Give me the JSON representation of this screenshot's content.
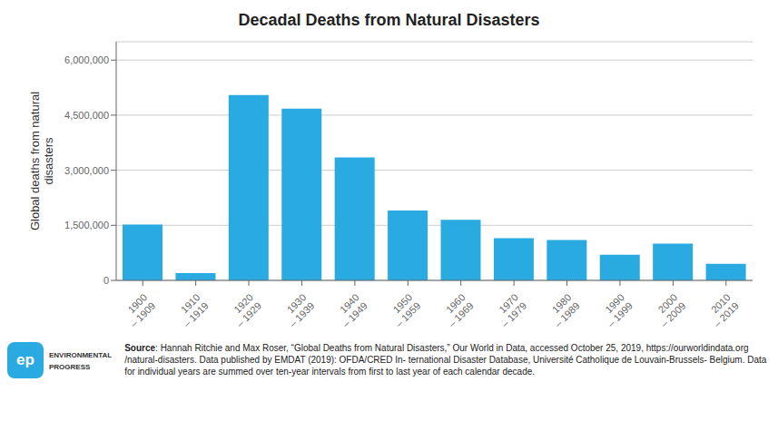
{
  "chart_data": {
    "type": "bar",
    "title": "Decadal Deaths from Natural Disasters",
    "ylabel": "Global deaths from natural\ndisasters",
    "categories": [
      "1900\n– 1909",
      "1910\n– 1919",
      "1920\n– 1929",
      "1930\n– 1939",
      "1940\n– 1949",
      "1950\n– 1959",
      "1960\n– 1969",
      "1970\n– 1979",
      "1980\n– 1989",
      "1990\n– 1999",
      "2000\n– 2009",
      "2010\n– 2019"
    ],
    "values": [
      1520000,
      200000,
      5050000,
      4680000,
      3350000,
      1900000,
      1650000,
      1150000,
      1100000,
      700000,
      1000000,
      450000
    ],
    "color": "#29ABE2",
    "ylim": [
      0,
      6500000
    ],
    "yticks": [
      0,
      {
        "value": 1500000,
        "label": "1,500,000"
      },
      {
        "value": 3000000,
        "label": "3,000,000"
      },
      {
        "value": 4500000,
        "label": "4,500,000"
      },
      {
        "value": 6000000,
        "label": "6,000,000"
      }
    ],
    "grid": true,
    "annotations": [
      "ep",
      "ENVIRONMENTAL",
      "PROGRESS"
    ],
    "source": "Source: Hannah Ritchie and Max Roser, “Global Deaths from Natural Disasters,” Our World in Data, accessed October 25, 2019, https://ourworldindata.org /natural-disasters. Data published by EMDAT (2019): OFDA/CRED In- ternational Disaster Database, Université Catholique de Louvain-Brussels- Belgium. Data for individual years are summed over ten-year intervals from first to last year of each calendar decade."
  }
}
